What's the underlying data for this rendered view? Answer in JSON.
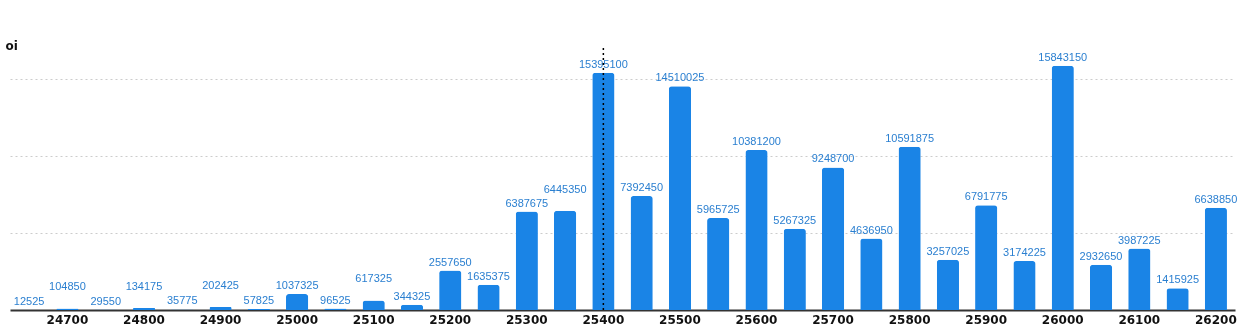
{
  "chart_data": {
    "type": "bar",
    "ylabel": "oi",
    "categories": [
      null,
      "24700",
      null,
      "24800",
      null,
      "24900",
      null,
      "25000",
      null,
      "25100",
      null,
      "25200",
      null,
      "25300",
      null,
      "25400",
      null,
      "25500",
      null,
      "25600",
      null,
      "25700",
      null,
      "25800",
      null,
      "25900",
      null,
      "26000",
      null,
      "26100",
      null,
      "26200"
    ],
    "values": [
      12525,
      104850,
      29550,
      134175,
      35775,
      202425,
      57825,
      1037325,
      96525,
      617325,
      344325,
      2557650,
      1635375,
      6387675,
      6445350,
      15395100,
      7392450,
      14510025,
      5965725,
      10381200,
      5267325,
      9248700,
      4636950,
      10591875,
      3257025,
      6791775,
      3174225,
      15843150,
      2932650,
      3987225,
      1415925,
      6638850
    ],
    "color": "#1a84e6",
    "data_labels": true,
    "ylim": [
      0,
      17000000
    ],
    "yticks": [
      {
        "value": 5000000,
        "label": null
      },
      {
        "value": 10000000,
        "label": null
      },
      {
        "value": 15000000,
        "label": null
      }
    ],
    "grid": "y",
    "tick_labels": "x",
    "ref_lines": [
      {
        "axis": "x",
        "value": "25400",
        "line_style": "dotted",
        "color": "#000000"
      }
    ]
  }
}
